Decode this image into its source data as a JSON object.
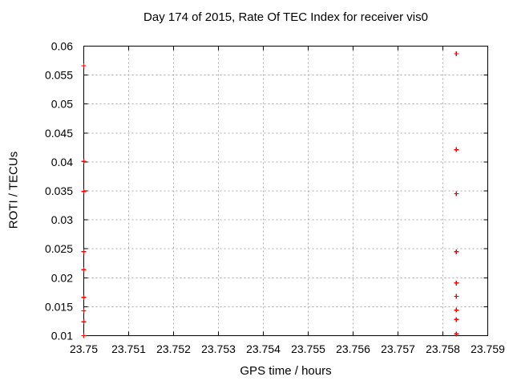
{
  "chart_data": {
    "type": "scatter",
    "title": "Day 174 of 2015, Rate Of TEC Index for receiver vis0",
    "xlabel": "GPS time / hours",
    "ylabel": "ROTI / TECUs",
    "xlim": [
      23.75,
      23.759
    ],
    "ylim": [
      0.01,
      0.06
    ],
    "xticks": [
      23.75,
      23.751,
      23.752,
      23.753,
      23.754,
      23.755,
      23.756,
      23.757,
      23.758,
      23.759
    ],
    "xtick_labels": [
      "23.75",
      "23.751",
      "23.752",
      "23.753",
      "23.754",
      "23.755",
      "23.756",
      "23.757",
      "23.758",
      "23.759"
    ],
    "yticks": [
      0.01,
      0.015,
      0.02,
      0.025,
      0.03,
      0.035,
      0.04,
      0.045,
      0.05,
      0.055,
      0.06
    ],
    "ytick_labels": [
      "0.01",
      "0.015",
      "0.02",
      "0.025",
      "0.03",
      "0.035",
      "0.04",
      "0.045",
      "0.05",
      "0.055",
      "0.06"
    ],
    "grid": true,
    "legend": "none",
    "marker": {
      "shape": "plus",
      "color": "#ff0000",
      "size": 7
    },
    "colors": {
      "background": "#ffffff",
      "axis": "#000000",
      "grid": "#aaaaaa",
      "text": "#000000",
      "marker": "#ff0000"
    },
    "series": [
      {
        "name": "ROTI",
        "points": [
          [
            23.75,
            0.0566
          ],
          [
            23.75,
            0.0401
          ],
          [
            23.75,
            0.0349
          ],
          [
            23.75,
            0.0245
          ],
          [
            23.75,
            0.0214
          ],
          [
            23.75,
            0.0166
          ],
          [
            23.75,
            0.0143
          ],
          [
            23.75,
            0.0124
          ],
          [
            23.75,
            0.01
          ],
          [
            23.7583,
            0.0587
          ],
          [
            23.7583,
            0.0421
          ],
          [
            23.7583,
            0.0345
          ],
          [
            23.7583,
            0.0245
          ],
          [
            23.7583,
            0.0191
          ],
          [
            23.7583,
            0.0168
          ],
          [
            23.7583,
            0.0144
          ],
          [
            23.7583,
            0.0128
          ],
          [
            23.7583,
            0.0103
          ]
        ]
      }
    ]
  }
}
